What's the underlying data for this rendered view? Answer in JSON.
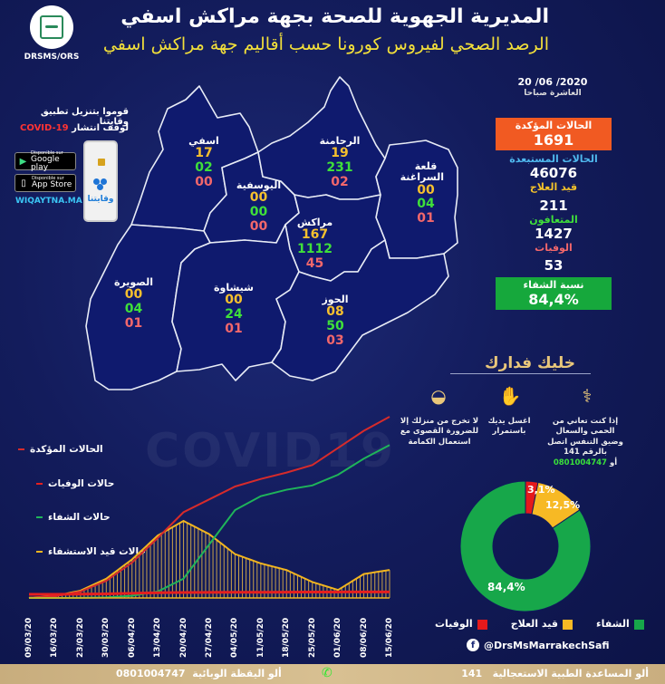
{
  "header": {
    "logo_label": "DRSMS/ORS",
    "title": "المديرية الجهوية للصحة بجهة مراكش اسفي",
    "subtitle": "الرصد الصحي لفيروس كورونا حسب أقاليم جهة مراكش اسفي"
  },
  "date": {
    "value": "20 /06 /2020",
    "time_label": "العاشرة صباحا"
  },
  "stats": {
    "confirmed_label": "الحالات المؤكدة",
    "confirmed_value": "1691",
    "excluded_label": "الحالات المستبعدة",
    "excluded_value": "46076",
    "under_treatment_label": "قيد العلاج",
    "under_treatment_value": "211",
    "recovered_label": "المتعافون",
    "recovered_value": "1427",
    "deaths_label": "الوفيات",
    "deaths_value": "53",
    "recovery_rate_label": "نسبة الشفاء",
    "recovery_rate_value": "84,4%"
  },
  "promo": {
    "line1": "قوموا بتنزيل تطبيق وقايتنا",
    "line2_prefix": "لوقف انتشار",
    "line2_covid": "COVID-19",
    "google_small": "Disponible sur",
    "google_big": "Google play",
    "apple_small": "Disponible sur",
    "apple_big": "App Store",
    "website": "WIQAYTNA.MA",
    "app_name": "وقايتنا"
  },
  "map": {
    "regions": [
      {
        "name": "اسفي",
        "confirmed": "17",
        "recovered": "02",
        "deaths": "00"
      },
      {
        "name": "الرحامنة",
        "confirmed": "19",
        "recovered": "231",
        "deaths": "02"
      },
      {
        "name": "قلعة السراغنة",
        "confirmed": "00",
        "recovered": "04",
        "deaths": "01"
      },
      {
        "name": "اليوسفية",
        "confirmed": "00",
        "recovered": "00",
        "deaths": "00"
      },
      {
        "name": "مراكش",
        "confirmed": "167",
        "recovered": "1112",
        "deaths": "45"
      },
      {
        "name": "الصويرة",
        "confirmed": "00",
        "recovered": "04",
        "deaths": "01"
      },
      {
        "name": "شيشاوة",
        "confirmed": "00",
        "recovered": "24",
        "deaths": "01"
      },
      {
        "name": "الحوز",
        "confirmed": "08",
        "recovered": "50",
        "deaths": "03"
      }
    ]
  },
  "awareness": {
    "title": "خليك فدارك",
    "items": [
      {
        "icon": "stethoscope-icon",
        "text": "إذا كنت تعاني من الحمى والسعال وضيق التنفس اتصل بالرقم 141",
        "or_label": "أو",
        "number": "0801004747"
      },
      {
        "icon": "hand-wash-icon",
        "text": "اغسل يديك باستمرار"
      },
      {
        "icon": "mask-icon",
        "text": "لا تخرج من منزلك إلا للضرورة القصوى مع استعمال الكمامة"
      }
    ]
  },
  "chart_legend": {
    "confirmed": "الحالات المؤكدة",
    "deaths": "حالات الوفيات",
    "recovered": "حالات الشفاء",
    "hospitalized": "حالات قيد الاستشفاء"
  },
  "pie_legend": {
    "recovered": "الشفاء",
    "treatment": "قيد العلاج",
    "deaths": "الوفيات"
  },
  "social": {
    "facebook": "@DrsMsMarrakechSafi"
  },
  "bottom_bar": {
    "right_text": "ألو المساعدة الطبية الاستعجالية",
    "right_number": "141",
    "left_text": "ألو اليقظة الوبائية",
    "left_number": "0801004747"
  },
  "colors": {
    "confirmed": "#d62b2b",
    "recovered": "#1fb45a",
    "hospitalized": "#f2b51f",
    "deaths": "#e51f1f",
    "orange_box": "#f15a22",
    "green_box": "#16a83c"
  },
  "chart_data": [
    {
      "type": "line",
      "title": "",
      "xlabel": "",
      "ylabel": "",
      "categories": [
        "09/03/20",
        "16/03/20",
        "23/03/20",
        "30/03/20",
        "06/04/20",
        "13/04/20",
        "20/04/20",
        "27/04/20",
        "04/05/20",
        "11/05/20",
        "18/05/20",
        "25/05/20",
        "01/06/20",
        "08/06/20",
        "15/06/20"
      ],
      "series": [
        {
          "name": "الحالات المؤكدة",
          "color": "#d62b2b",
          "values": [
            2,
            15,
            60,
            160,
            330,
            560,
            800,
            920,
            1040,
            1110,
            1170,
            1240,
            1400,
            1560,
            1691
          ]
        },
        {
          "name": "حالات الوفيات",
          "color": "#e51f1f",
          "values": [
            0,
            1,
            4,
            10,
            22,
            34,
            40,
            43,
            44,
            45,
            48,
            50,
            51,
            52,
            53
          ]
        },
        {
          "name": "حالات الشفاء",
          "color": "#1fb45a",
          "values": [
            0,
            0,
            1,
            5,
            20,
            60,
            180,
            500,
            820,
            950,
            1010,
            1050,
            1150,
            1300,
            1427
          ]
        },
        {
          "name": "حالات قيد الاستشفاء",
          "color": "#f2b51f",
          "type": "bar",
          "values": [
            2,
            14,
            55,
            145,
            290,
            470,
            580,
            480,
            330,
            260,
            210,
            120,
            60,
            180,
            211
          ]
        }
      ],
      "grid": false,
      "legend_position": "left"
    },
    {
      "type": "pie",
      "title": "",
      "categories": [
        "الشفاء",
        "قيد العلاج",
        "الوفيات"
      ],
      "values": [
        84.4,
        12.5,
        3.1
      ],
      "labels": [
        "84,4%",
        "12,5%",
        "3,1%"
      ],
      "colors": [
        "#17a74a",
        "#f7b924",
        "#e5191b"
      ],
      "donut": true
    }
  ]
}
